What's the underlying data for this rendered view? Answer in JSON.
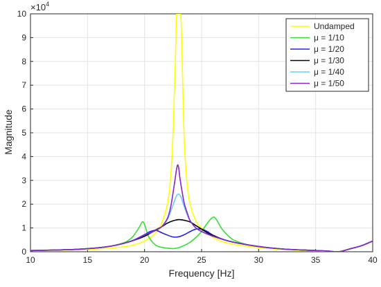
{
  "chart_data": {
    "type": "line",
    "title": "",
    "xlabel": "Frequency [Hz]",
    "ylabel": "Magnitude",
    "y_multiplier_label": "×10",
    "y_multiplier_exponent": "4",
    "xlim": [
      10,
      40
    ],
    "ylim": [
      0,
      10
    ],
    "grid": true,
    "legend_position": "top-right",
    "x_ticks": [
      10,
      15,
      20,
      25,
      30,
      35,
      40
    ],
    "y_ticks": [
      0,
      1,
      2,
      3,
      4,
      5,
      6,
      7,
      8,
      9,
      10
    ],
    "series": [
      {
        "name": "Undamped",
        "color": "#ffff00",
        "x": [
          10,
          12,
          14,
          16,
          18,
          19,
          20,
          21,
          21.5,
          22,
          22.3,
          22.5,
          22.6,
          22.7,
          22.75,
          22.8,
          22.9,
          23.0,
          23.1,
          23.2,
          23.3,
          23.4,
          23.5,
          23.7,
          24,
          24.5,
          25,
          26,
          27,
          28,
          30,
          32,
          34,
          36,
          36.8,
          37.2,
          38,
          39,
          40
        ],
        "y": [
          0.05,
          0.06,
          0.08,
          0.12,
          0.2,
          0.28,
          0.45,
          0.8,
          1.2,
          2.0,
          3.2,
          5.0,
          6.5,
          8.0,
          9.0,
          10,
          10,
          10,
          10,
          9.8,
          8.0,
          6.0,
          4.5,
          3.0,
          2.0,
          1.3,
          1.0,
          0.6,
          0.4,
          0.3,
          0.17,
          0.1,
          0.05,
          0.02,
          0.0,
          0.02,
          0.12,
          0.25,
          0.45
        ]
      },
      {
        "name": "μ = 1/10",
        "color": "#33dd33",
        "x": [
          10,
          12,
          14,
          16,
          17,
          18,
          18.5,
          19,
          19.5,
          19.8,
          20,
          20.3,
          20.7,
          21.2,
          22,
          22.5,
          23,
          23.5,
          24,
          24.5,
          25,
          25.5,
          26,
          26.3,
          26.8,
          27.5,
          28,
          29,
          30,
          32,
          34,
          36,
          37,
          38,
          39,
          40
        ],
        "y": [
          0.05,
          0.07,
          0.1,
          0.17,
          0.23,
          0.35,
          0.45,
          0.65,
          1.0,
          1.25,
          1.15,
          0.7,
          0.4,
          0.22,
          0.15,
          0.13,
          0.17,
          0.27,
          0.4,
          0.6,
          0.85,
          1.2,
          1.45,
          1.35,
          0.95,
          0.6,
          0.45,
          0.3,
          0.22,
          0.12,
          0.07,
          0.03,
          0.0,
          0.12,
          0.25,
          0.45
        ]
      },
      {
        "name": "μ = 1/20",
        "color": "#2222ee",
        "x": [
          10,
          12,
          14,
          16,
          17,
          18,
          19,
          20,
          20.5,
          21,
          21.5,
          22,
          22.5,
          23,
          23.5,
          24,
          24.5,
          25,
          25.5,
          26,
          27,
          28,
          30,
          32,
          34,
          36,
          37,
          38,
          39,
          40
        ],
        "y": [
          0.05,
          0.07,
          0.1,
          0.17,
          0.23,
          0.33,
          0.48,
          0.72,
          0.85,
          0.9,
          0.8,
          0.7,
          0.62,
          0.63,
          0.72,
          0.85,
          0.95,
          0.95,
          0.85,
          0.7,
          0.5,
          0.38,
          0.22,
          0.12,
          0.07,
          0.03,
          0.0,
          0.12,
          0.25,
          0.45
        ]
      },
      {
        "name": "μ = 1/30",
        "color": "#000000",
        "x": [
          10,
          12,
          14,
          16,
          17,
          18,
          19,
          20,
          20.5,
          21,
          21.5,
          22,
          22.5,
          23,
          23.5,
          24,
          24.5,
          25,
          25.5,
          26,
          27,
          28,
          30,
          32,
          34,
          36,
          37,
          38,
          39,
          40
        ],
        "y": [
          0.05,
          0.07,
          0.1,
          0.17,
          0.23,
          0.33,
          0.47,
          0.65,
          0.78,
          0.92,
          1.05,
          1.2,
          1.3,
          1.35,
          1.32,
          1.25,
          1.1,
          0.95,
          0.8,
          0.68,
          0.5,
          0.38,
          0.22,
          0.12,
          0.07,
          0.03,
          0.0,
          0.12,
          0.25,
          0.45
        ]
      },
      {
        "name": "μ = 1/40",
        "color": "#66ccff",
        "x": [
          10,
          12,
          14,
          16,
          17,
          18,
          19,
          20,
          20.5,
          21,
          21.5,
          22,
          22.3,
          22.6,
          22.8,
          23,
          23.2,
          23.4,
          23.7,
          24,
          24.5,
          25,
          26,
          27,
          28,
          30,
          32,
          34,
          36,
          37,
          38,
          39,
          40
        ],
        "y": [
          0.05,
          0.07,
          0.1,
          0.17,
          0.23,
          0.33,
          0.48,
          0.7,
          0.8,
          0.9,
          1.05,
          1.35,
          1.7,
          2.1,
          2.35,
          2.42,
          2.3,
          2.0,
          1.6,
          1.3,
          1.0,
          0.85,
          0.65,
          0.5,
          0.38,
          0.22,
          0.12,
          0.07,
          0.03,
          0.0,
          0.12,
          0.25,
          0.45
        ]
      },
      {
        "name": "μ = 1/50",
        "color": "#8822cc",
        "x": [
          10,
          12,
          14,
          16,
          17,
          18,
          19,
          20,
          20.5,
          21,
          21.5,
          22,
          22.3,
          22.6,
          22.8,
          22.9,
          23.0,
          23.1,
          23.3,
          23.5,
          23.8,
          24,
          24.5,
          25,
          26,
          27,
          28,
          30,
          32,
          34,
          36,
          37,
          38,
          39,
          40
        ],
        "y": [
          0.05,
          0.07,
          0.1,
          0.17,
          0.23,
          0.33,
          0.48,
          0.7,
          0.8,
          0.9,
          1.05,
          1.4,
          1.9,
          2.8,
          3.45,
          3.65,
          3.5,
          3.1,
          2.5,
          2.0,
          1.55,
          1.3,
          1.0,
          0.85,
          0.65,
          0.5,
          0.38,
          0.22,
          0.12,
          0.07,
          0.03,
          0.0,
          0.12,
          0.25,
          0.45
        ]
      }
    ]
  }
}
